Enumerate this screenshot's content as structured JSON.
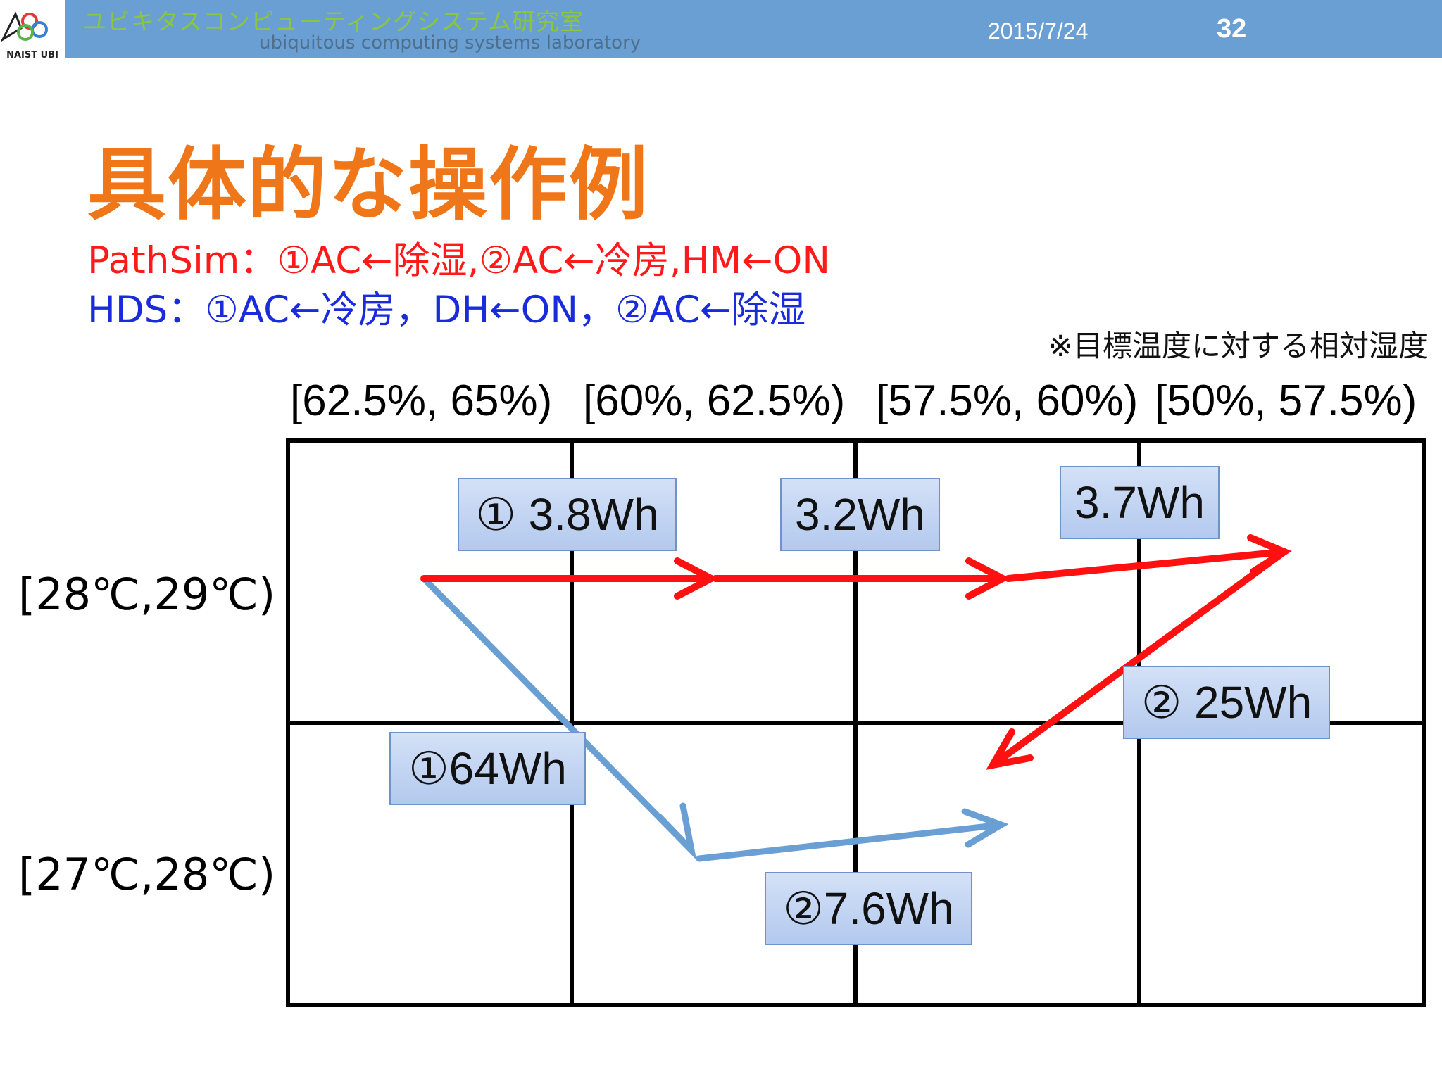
{
  "header": {
    "lab_name_jp": "ユビキタスコンピューティングシステム研究室",
    "lab_name_en": "ubiquitous computing systems laboratory",
    "date": "2015/7/24",
    "page_number": "32",
    "logo_text": "NAIST UBI"
  },
  "title": "具体的な操作例",
  "methods": {
    "pathsim": "PathSim：①AC←除湿,②AC←冷房,HM←ON",
    "hds": "HDS：①AC←冷房，DH←ON，②AC←除湿"
  },
  "note": "※目標温度に対する相対湿度",
  "columns": [
    "[62.5%, 65%)",
    "[60%, 62.5%)",
    "[57.5%, 60%)",
    "[50%, 57.5%)"
  ],
  "rows": [
    "[28℃,29℃)",
    "[27℃,28℃)"
  ],
  "labels": {
    "pathsim_step1": "① 3.8Wh",
    "pathsim_step1b": "3.2Wh",
    "pathsim_step1c": "3.7Wh",
    "pathsim_step2": "② 25Wh",
    "hds_step1": "①64Wh",
    "hds_step2": "②7.6Wh"
  },
  "colors": {
    "header_bg": "#6a9fd3",
    "title": "#f0761a",
    "pathsim": "#ff1a1a",
    "hds": "#1a2bdb",
    "pathsim_arrow": "#ff1111",
    "hds_arrow": "#6a9fd3"
  }
}
